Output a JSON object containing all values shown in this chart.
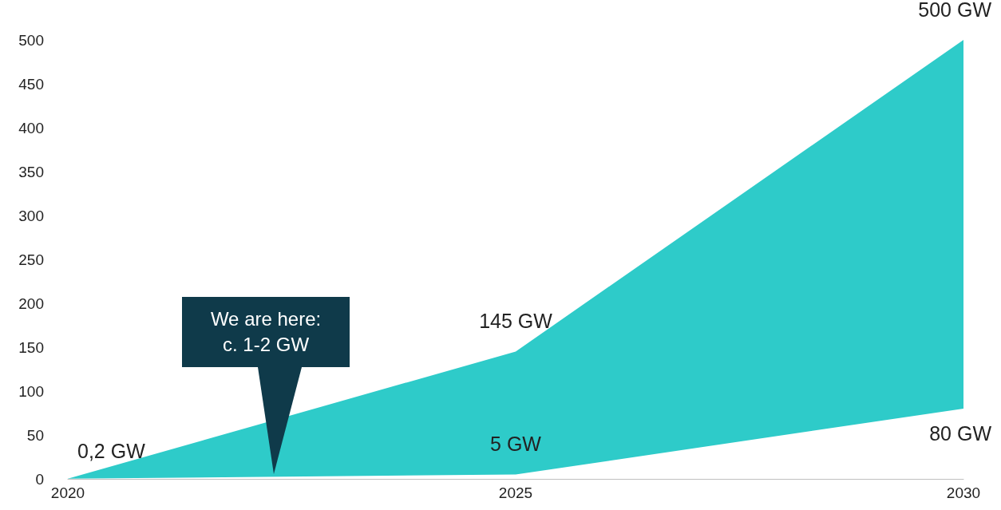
{
  "chart_data": {
    "type": "area",
    "x": [
      2020,
      2025,
      2030
    ],
    "series": [
      {
        "color": "#2ecbc9",
        "values": [
          0.2,
          145,
          500
        ]
      },
      {
        "color": "#ffffff",
        "values": [
          0.2,
          5,
          80
        ]
      }
    ],
    "xlim": [
      2020,
      2030
    ],
    "xticks": [
      2020,
      2025,
      2030
    ],
    "ylim": [
      0,
      500
    ],
    "yticks": [
      0,
      50,
      100,
      150,
      200,
      250,
      300,
      350,
      400,
      450,
      500
    ],
    "grid": false,
    "annotations": [
      {
        "text": "0,2 GW",
        "x": 2020,
        "y": 0.2
      },
      {
        "text": "145 GW",
        "x": 2025,
        "y": 145
      },
      {
        "text": "500 GW",
        "x": 2030,
        "y": 500
      },
      {
        "text": "5 GW",
        "x": 2025,
        "y": 5
      },
      {
        "text": "80 GW",
        "x": 2030,
        "y": 80
      },
      "We are here:\nc. 1-2 GW"
    ]
  }
}
